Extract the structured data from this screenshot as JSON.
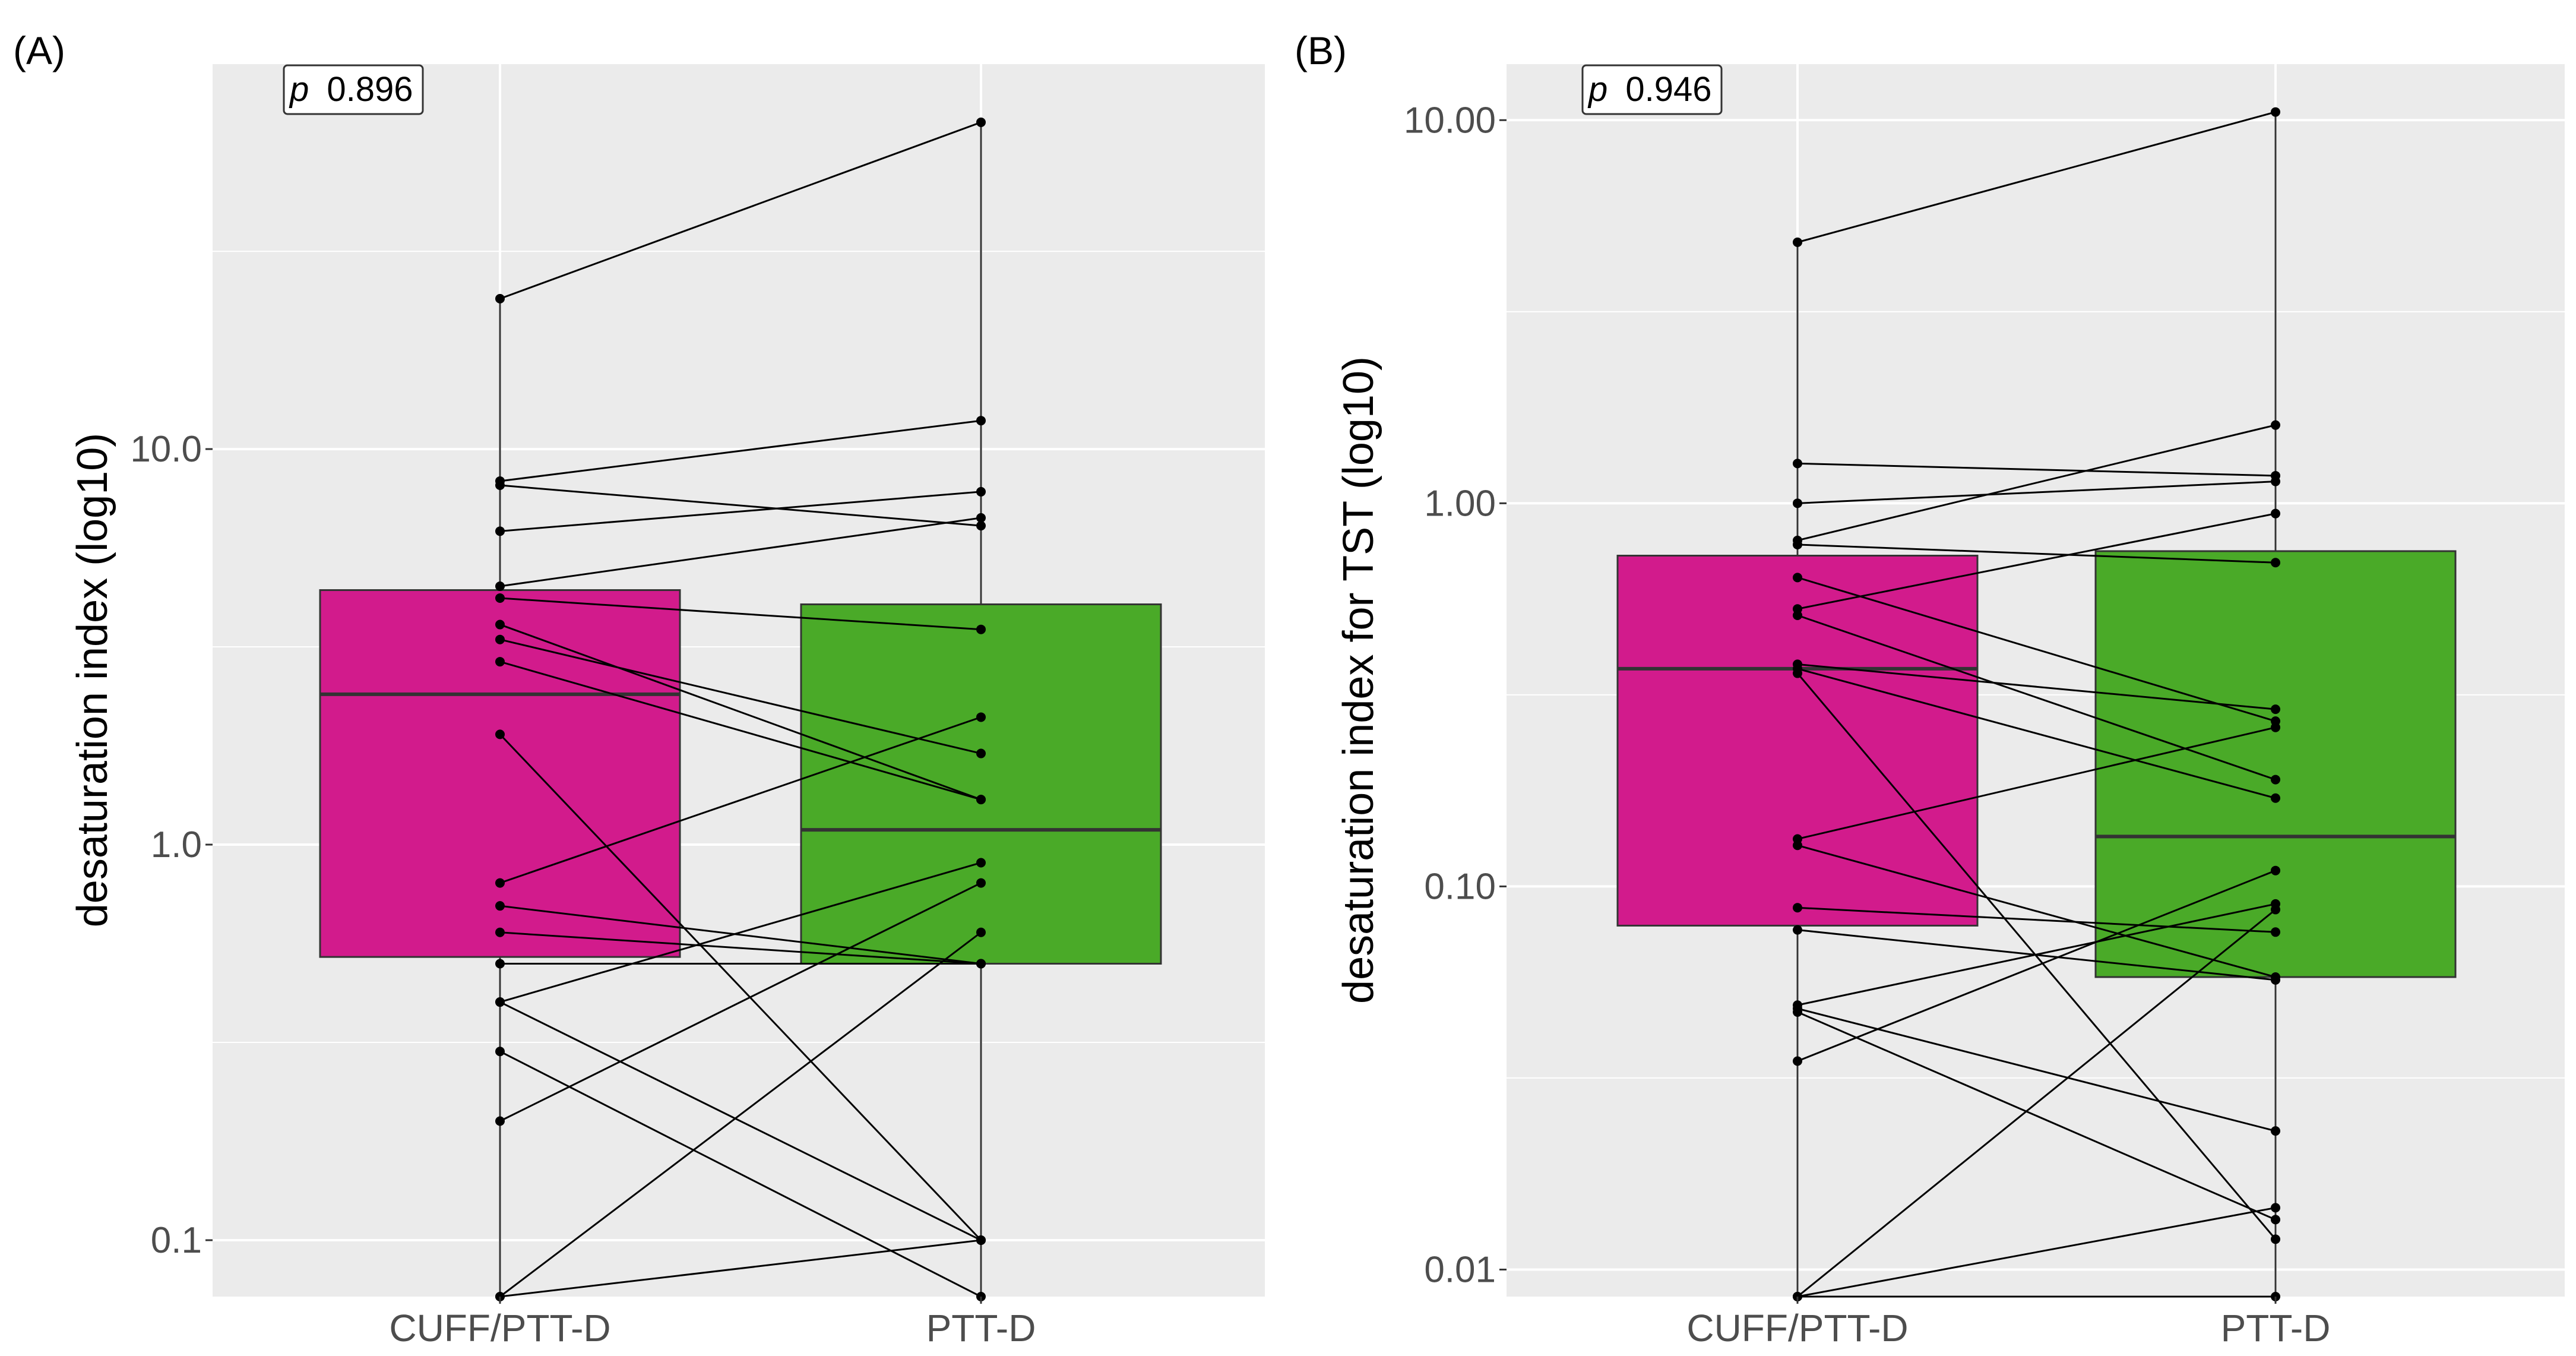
{
  "chart_data": [
    {
      "type": "boxplot-paired",
      "panel_label": "(A)",
      "ylabel": "desaturation index (log10)",
      "log_scale": true,
      "ylim": [
        0.072,
        94
      ],
      "yticks": [
        0.1,
        1.0,
        10.0
      ],
      "ytick_labels": [
        "0.1",
        "1.0",
        "10.0"
      ],
      "categories": [
        "CUFF/PTT-D",
        "PTT-D"
      ],
      "annotation": {
        "prefix": "p",
        "value": "0.896"
      },
      "boxes": [
        {
          "name": "CUFF/PTT-D",
          "q1": 0.52,
          "median": 2.4,
          "q3": 4.4,
          "whisker_low": 0.072,
          "whisker_high": 24
        },
        {
          "name": "PTT-D",
          "q1": 0.5,
          "median": 1.09,
          "q3": 4.05,
          "whisker_low": 0.072,
          "whisker_high": 67
        }
      ],
      "pairs": [
        [
          24,
          67
        ],
        [
          8.3,
          11.8
        ],
        [
          8.1,
          6.4
        ],
        [
          6.2,
          7.8
        ],
        [
          4.5,
          6.7
        ],
        [
          4.2,
          3.5
        ],
        [
          3.6,
          1.3
        ],
        [
          3.3,
          1.7
        ],
        [
          2.9,
          1.3
        ],
        [
          1.9,
          0.1
        ],
        [
          0.8,
          2.1
        ],
        [
          0.7,
          0.5
        ],
        [
          0.6,
          0.5
        ],
        [
          0.5,
          0.5
        ],
        [
          0.4,
          0.9
        ],
        [
          0.4,
          0.1
        ],
        [
          0.3,
          0.072
        ],
        [
          0.2,
          0.8
        ],
        [
          0.072,
          0.6
        ],
        [
          0.072,
          0.1
        ]
      ],
      "colors": {
        "box_left": "#D21B8C",
        "box_right": "#4AAA28"
      }
    },
    {
      "type": "boxplot-paired",
      "panel_label": "(B)",
      "ylabel": "desaturation index for TST (log10)",
      "log_scale": true,
      "ylim": [
        0.0085,
        14
      ],
      "yticks": [
        0.01,
        0.1,
        1.0,
        10.0
      ],
      "ytick_labels": [
        "0.01",
        "0.10",
        "1.00",
        "10.00"
      ],
      "categories": [
        "CUFF/PTT-D",
        "PTT-D"
      ],
      "annotation": {
        "prefix": "p",
        "value": "0.946"
      },
      "boxes": [
        {
          "name": "CUFF/PTT-D",
          "q1": 0.079,
          "median": 0.37,
          "q3": 0.73,
          "whisker_low": 0.0085,
          "whisker_high": 4.8
        },
        {
          "name": "PTT-D",
          "q1": 0.058,
          "median": 0.135,
          "q3": 0.75,
          "whisker_low": 0.0085,
          "whisker_high": 10.5
        }
      ],
      "pairs": [
        [
          4.8,
          10.5
        ],
        [
          1.27,
          1.18
        ],
        [
          1.0,
          1.14
        ],
        [
          0.8,
          1.6
        ],
        [
          0.78,
          0.7
        ],
        [
          0.64,
          0.27
        ],
        [
          0.53,
          0.94
        ],
        [
          0.51,
          0.19
        ],
        [
          0.38,
          0.29
        ],
        [
          0.37,
          0.17
        ],
        [
          0.36,
          0.012
        ],
        [
          0.133,
          0.26
        ],
        [
          0.128,
          0.058
        ],
        [
          0.088,
          0.076
        ],
        [
          0.077,
          0.057
        ],
        [
          0.049,
          0.09
        ],
        [
          0.048,
          0.023
        ],
        [
          0.047,
          0.0135
        ],
        [
          0.035,
          0.11
        ],
        [
          0.0085,
          0.0145
        ],
        [
          0.0085,
          0.087
        ],
        [
          0.0085,
          0.0085
        ]
      ],
      "colors": {
        "box_left": "#D21B8C",
        "box_right": "#4AAA28"
      }
    }
  ]
}
